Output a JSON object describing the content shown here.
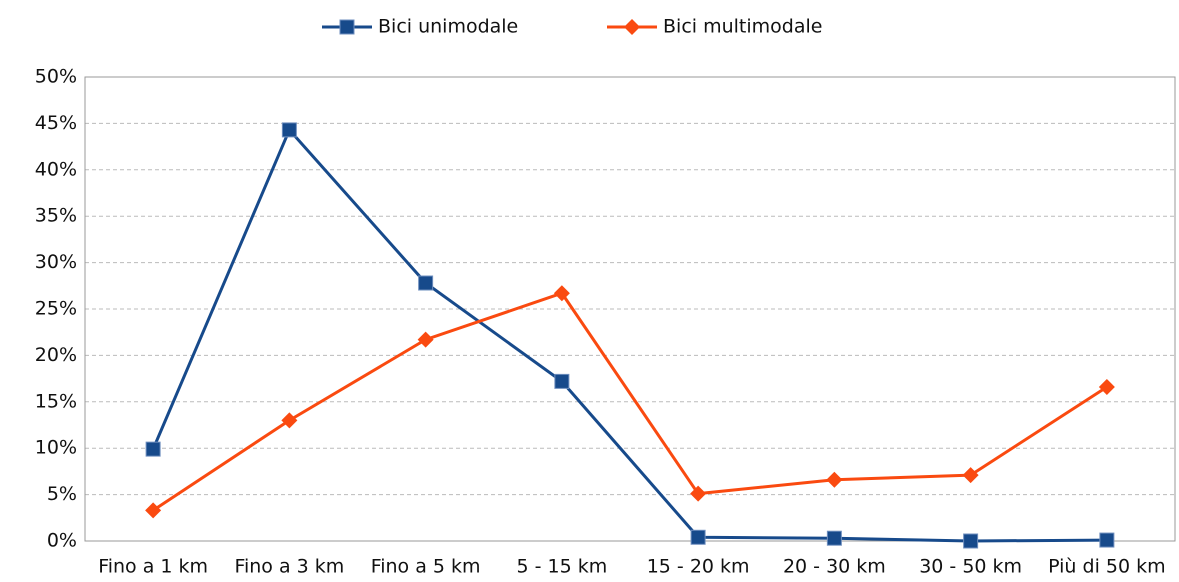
{
  "chart_data": {
    "type": "line",
    "categories": [
      "Fino a 1 km",
      "Fino a 3 km",
      "Fino a 5 km",
      "5 - 15 km",
      "15 - 20 km",
      "20 - 30 km",
      "30 - 50 km",
      "Più di 50 km"
    ],
    "series": [
      {
        "name": "Bici unimodale",
        "color": "#174a8b",
        "marker": "square",
        "values": [
          9.9,
          44.3,
          27.8,
          17.2,
          0.4,
          0.3,
          0.0,
          0.1
        ]
      },
      {
        "name": "Bici multimodale",
        "color": "#fa4a10",
        "marker": "diamond",
        "values": [
          3.3,
          13.0,
          21.7,
          26.7,
          5.1,
          6.6,
          7.1,
          16.6
        ]
      }
    ],
    "ylim": [
      0,
      50
    ],
    "yticks": [
      {
        "value": 0,
        "label": "0%"
      },
      {
        "value": 5,
        "label": "5%"
      },
      {
        "value": 10,
        "label": "10%"
      },
      {
        "value": 15,
        "label": "15%"
      },
      {
        "value": 20,
        "label": "20%"
      },
      {
        "value": 25,
        "label": "25%"
      },
      {
        "value": 30,
        "label": "30%"
      },
      {
        "value": 35,
        "label": "35%"
      },
      {
        "value": 40,
        "label": "40%"
      },
      {
        "value": 45,
        "label": "45%"
      },
      {
        "value": 50,
        "label": "50%"
      }
    ],
    "grid": true,
    "legend": "top"
  }
}
